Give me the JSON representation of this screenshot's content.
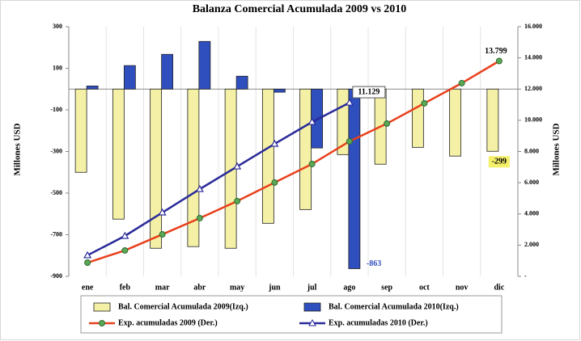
{
  "chart_data": {
    "type": "bar",
    "title": "Balanza Comercial Acumulada 2009 vs 2010",
    "y_label": "Millones USD",
    "y2_label": "Millones USD",
    "categories": [
      "ene",
      "feb",
      "mar",
      "abr",
      "may",
      "jun",
      "jul",
      "ago",
      "sep",
      "oct",
      "nov",
      "dic"
    ],
    "ylim": [
      -900,
      300
    ],
    "yticks": [
      300,
      100,
      -100,
      -300,
      -500,
      -700,
      -900
    ],
    "y2lim": [
      0,
      16000
    ],
    "y2ticks": [
      {
        "value": 16000,
        "label": "16.000"
      },
      {
        "value": 14000,
        "label": "14.000"
      },
      {
        "value": 12000,
        "label": "12.000"
      },
      {
        "value": 10000,
        "label": "10.000"
      },
      {
        "value": 8000,
        "label": "8.000"
      },
      {
        "value": 6000,
        "label": "6.000"
      },
      {
        "value": 4000,
        "label": "4.000"
      },
      {
        "value": 2000,
        "label": "2.000"
      },
      {
        "value": 0,
        "label": "-"
      }
    ],
    "grid": false,
    "series": [
      {
        "name": "Bal. Comercial Acumulada 2009(Izq.)",
        "type": "bar",
        "color": "#f4f0a6",
        "axis": "y",
        "values": [
          -400,
          -625,
          -765,
          -757,
          -765,
          -645,
          -579,
          -315,
          -361,
          -280,
          -322,
          -299
        ],
        "value_labels": [
          null,
          null,
          null,
          null,
          null,
          null,
          null,
          null,
          null,
          null,
          null,
          "-299"
        ]
      },
      {
        "name": "Bal. Comercial Acumulada 2010(Izq.)",
        "type": "bar",
        "color": "#2f4fbf",
        "axis": "y",
        "values": [
          15,
          113,
          167,
          229,
          62,
          -15,
          -283,
          -863,
          null,
          null,
          null,
          null
        ],
        "value_labels": [
          null,
          null,
          null,
          null,
          null,
          null,
          null,
          "-863",
          null,
          null,
          null,
          null
        ]
      },
      {
        "name": "Exp. acumuladas 2009 (Der.)",
        "type": "line",
        "color": "#e8401c",
        "axis": "y2",
        "values": [
          880,
          1660,
          2690,
          3730,
          4820,
          6010,
          7200,
          8650,
          9790,
          11090,
          12380,
          13799
        ],
        "value_labels": [
          null,
          null,
          null,
          null,
          null,
          null,
          null,
          null,
          null,
          null,
          null,
          "13.799"
        ]
      },
      {
        "name": "Exp. acumuladas 2010 (Der.)",
        "type": "line",
        "color": "#2a2a9a",
        "axis": "y2",
        "values": [
          1350,
          2590,
          4090,
          5590,
          7040,
          8490,
          9890,
          11129,
          null,
          null,
          null,
          null
        ],
        "value_labels": [
          null,
          null,
          null,
          null,
          null,
          null,
          null,
          "11.129",
          null,
          null,
          null,
          null
        ]
      }
    ]
  }
}
